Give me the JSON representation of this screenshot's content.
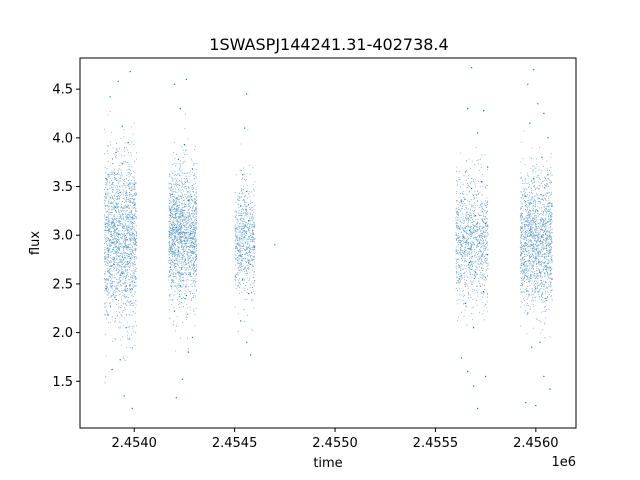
{
  "chart_data": {
    "type": "scatter",
    "title": "1SWASPJ144241.31-402738.4",
    "xlabel": "time",
    "ylabel": "flux",
    "x_offset_label": "1e6",
    "xlim": [
      2.45373,
      2.4562
    ],
    "ylim": [
      1.02,
      4.82
    ],
    "grid": false,
    "legend": "none",
    "marker_color": "#1f77b4",
    "x_ticks": [
      {
        "value": 2.454,
        "label": "2.4540"
      },
      {
        "value": 2.4545,
        "label": "2.4545"
      },
      {
        "value": 2.455,
        "label": "2.4550"
      },
      {
        "value": 2.4555,
        "label": "2.4555"
      },
      {
        "value": 2.456,
        "label": "2.4560"
      }
    ],
    "y_ticks": [
      {
        "value": 1.5,
        "label": "1.5"
      },
      {
        "value": 2.0,
        "label": "2.0"
      },
      {
        "value": 2.5,
        "label": "2.5"
      },
      {
        "value": 3.0,
        "label": "3.0"
      },
      {
        "value": 3.5,
        "label": "3.5"
      },
      {
        "value": 4.0,
        "label": "4.0"
      },
      {
        "value": 4.5,
        "label": "4.5"
      }
    ],
    "series": [
      {
        "values": [
          [
            2.45386,
            2.45
          ],
          [
            2.45387,
            3.62
          ],
          [
            2.45387,
            2.18
          ],
          [
            2.45388,
            4.42
          ],
          [
            2.45388,
            2.95
          ],
          [
            2.45389,
            1.62
          ],
          [
            2.4539,
            3.1
          ],
          [
            2.4539,
            2.7
          ],
          [
            2.45391,
            3.85
          ],
          [
            2.45391,
            2.34
          ],
          [
            2.45392,
            4.58
          ],
          [
            2.45392,
            3.01
          ],
          [
            2.45393,
            1.72
          ],
          [
            2.45393,
            3.44
          ],
          [
            2.45394,
            2.61
          ],
          [
            2.45394,
            4.12
          ],
          [
            2.45395,
            2.88
          ],
          [
            2.45395,
            1.35
          ],
          [
            2.45396,
            3.29
          ],
          [
            2.45396,
            2.05
          ],
          [
            2.45397,
            3.95
          ],
          [
            2.45398,
            2.76
          ],
          [
            2.45398,
            4.68
          ],
          [
            2.45399,
            3.18
          ],
          [
            2.45399,
            1.22
          ],
          [
            2.45399,
            2.52
          ],
          [
            2.454,
            3.52
          ],
          [
            2.454,
            2.97
          ],
          [
            2.45418,
            2.67
          ],
          [
            2.45419,
            3.42
          ],
          [
            2.4542,
            4.55
          ],
          [
            2.4542,
            2.22
          ],
          [
            2.45421,
            3.08
          ],
          [
            2.45421,
            1.33
          ],
          [
            2.45422,
            3.78
          ],
          [
            2.45422,
            2.83
          ],
          [
            2.45423,
            4.3
          ],
          [
            2.45423,
            2.48
          ],
          [
            2.45424,
            3.2
          ],
          [
            2.45424,
            1.52
          ],
          [
            2.45425,
            3.93
          ],
          [
            2.45425,
            2.94
          ],
          [
            2.45426,
            4.6
          ],
          [
            2.45426,
            2.38
          ],
          [
            2.45427,
            3.36
          ],
          [
            2.45427,
            1.8
          ],
          [
            2.45428,
            3.02
          ],
          [
            2.45428,
            2.6
          ],
          [
            2.45429,
            3.68
          ],
          [
            2.45429,
            1.95
          ],
          [
            2.4543,
            2.88
          ],
          [
            2.4543,
            3.25
          ],
          [
            2.45452,
            2.84
          ],
          [
            2.45453,
            3.3
          ],
          [
            2.45453,
            2.12
          ],
          [
            2.45454,
            3.62
          ],
          [
            2.45454,
            2.55
          ],
          [
            2.45455,
            4.1
          ],
          [
            2.45455,
            2.98
          ],
          [
            2.45456,
            1.9
          ],
          [
            2.45456,
            3.45
          ],
          [
            2.45456,
            4.45
          ],
          [
            2.45457,
            2.4
          ],
          [
            2.45457,
            3.15
          ],
          [
            2.45458,
            1.77
          ],
          [
            2.45458,
            2.7
          ],
          [
            2.45459,
            3.05
          ],
          [
            2.4546,
            2.88
          ],
          [
            2.4547,
            2.9
          ],
          [
            2.45562,
            2.55
          ],
          [
            2.45563,
            3.35
          ],
          [
            2.45563,
            1.74
          ],
          [
            2.45564,
            2.98
          ],
          [
            2.45565,
            3.65
          ],
          [
            2.45565,
            2.3
          ],
          [
            2.45566,
            4.3
          ],
          [
            2.45566,
            1.6
          ],
          [
            2.45567,
            3.05
          ],
          [
            2.45567,
            2.72
          ],
          [
            2.45568,
            4.72
          ],
          [
            2.45568,
            3.48
          ],
          [
            2.45569,
            2.05
          ],
          [
            2.45569,
            1.45
          ],
          [
            2.4557,
            3.2
          ],
          [
            2.4557,
            2.62
          ],
          [
            2.45571,
            4.05
          ],
          [
            2.45571,
            1.22
          ],
          [
            2.45572,
            2.92
          ],
          [
            2.45573,
            3.55
          ],
          [
            2.45574,
            2.42
          ],
          [
            2.45574,
            4.28
          ],
          [
            2.45575,
            1.55
          ],
          [
            2.45575,
            3.12
          ],
          [
            2.45576,
            2.8
          ],
          [
            2.45576,
            3.7
          ],
          [
            2.45594,
            2.7
          ],
          [
            2.45595,
            3.4
          ],
          [
            2.45595,
            1.28
          ],
          [
            2.45596,
            4.55
          ],
          [
            2.45596,
            2.2
          ],
          [
            2.45597,
            3.05
          ],
          [
            2.45597,
            4.15
          ],
          [
            2.45598,
            1.85
          ],
          [
            2.45598,
            2.9
          ],
          [
            2.45599,
            4.7
          ],
          [
            2.45599,
            3.58
          ],
          [
            2.456,
            2.45
          ],
          [
            2.456,
            1.25
          ],
          [
            2.45601,
            3.25
          ],
          [
            2.45601,
            4.35
          ],
          [
            2.45602,
            2.62
          ],
          [
            2.45602,
            1.9
          ],
          [
            2.45603,
            3.8
          ],
          [
            2.45603,
            2.98
          ],
          [
            2.45604,
            4.25
          ],
          [
            2.45604,
            1.55
          ],
          [
            2.45605,
            3.12
          ],
          [
            2.45605,
            2.35
          ],
          [
            2.45606,
            3.62
          ],
          [
            2.45606,
            4.0
          ],
          [
            2.45607,
            2.82
          ],
          [
            2.45607,
            1.42
          ],
          [
            2.45608,
            3.3
          ],
          [
            2.45608,
            2.55
          ]
        ]
      }
    ],
    "clusters": [
      {
        "x_center": 2.45393,
        "x_half_width": 8e-05,
        "y_mean": 2.95,
        "y_sd": 0.42,
        "count": 1700
      },
      {
        "x_center": 2.45424,
        "x_half_width": 7e-05,
        "y_mean": 3.0,
        "y_sd": 0.35,
        "count": 1600
      },
      {
        "x_center": 2.45455,
        "x_half_width": 5e-05,
        "y_mean": 2.95,
        "y_sd": 0.3,
        "count": 650
      },
      {
        "x_center": 2.45568,
        "x_half_width": 8e-05,
        "y_mean": 2.95,
        "y_sd": 0.32,
        "count": 1000
      },
      {
        "x_center": 2.456,
        "x_half_width": 8e-05,
        "y_mean": 2.95,
        "y_sd": 0.34,
        "count": 1500
      }
    ]
  }
}
